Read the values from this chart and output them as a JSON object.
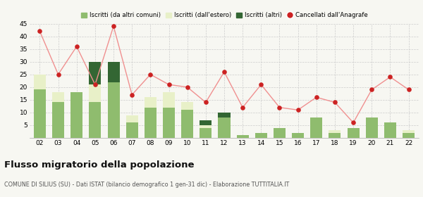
{
  "years": [
    "02",
    "03",
    "04",
    "05",
    "06",
    "07",
    "08",
    "09",
    "10",
    "11",
    "12",
    "13",
    "14",
    "15",
    "16",
    "17",
    "18",
    "19",
    "20",
    "21",
    "22"
  ],
  "iscritti_altri_comuni": [
    19,
    14,
    18,
    14,
    22,
    6,
    12,
    12,
    11,
    4,
    8,
    1,
    2,
    4,
    2,
    8,
    2,
    4,
    8,
    6,
    2
  ],
  "iscritti_estero": [
    6,
    4,
    0,
    7,
    0,
    3,
    4,
    6,
    3,
    1,
    0,
    0,
    0,
    0,
    0,
    0,
    1,
    0,
    0,
    0,
    1
  ],
  "iscritti_altri": [
    0,
    0,
    0,
    9,
    8,
    0,
    0,
    0,
    0,
    2,
    2,
    0,
    0,
    0,
    0,
    0,
    0,
    0,
    0,
    0,
    0
  ],
  "cancellati": [
    42,
    25,
    36,
    21,
    44,
    17,
    25,
    21,
    20,
    14,
    26,
    12,
    21,
    12,
    11,
    16,
    14,
    6,
    19,
    24,
    19
  ],
  "color_altri_comuni": "#8fbc6e",
  "color_estero": "#e8f0c8",
  "color_altri": "#336633",
  "color_cancellati": "#cc2222",
  "color_cancellati_line": "#f09090",
  "background_color": "#f7f7f2",
  "grid_color": "#cccccc",
  "title": "Flusso migratorio della popolazione",
  "subtitle": "COMUNE DI SILIUS (SU) - Dati ISTAT (bilancio demografico 1 gen-31 dic) - Elaborazione TUTTITALIA.IT",
  "legend_labels": [
    "Iscritti (da altri comuni)",
    "Iscritti (dall'estero)",
    "Iscritti (altri)",
    "Cancellati dall'Anagrafe"
  ],
  "ylim": [
    0,
    45
  ],
  "yticks": [
    0,
    5,
    10,
    15,
    20,
    25,
    30,
    35,
    40,
    45
  ]
}
